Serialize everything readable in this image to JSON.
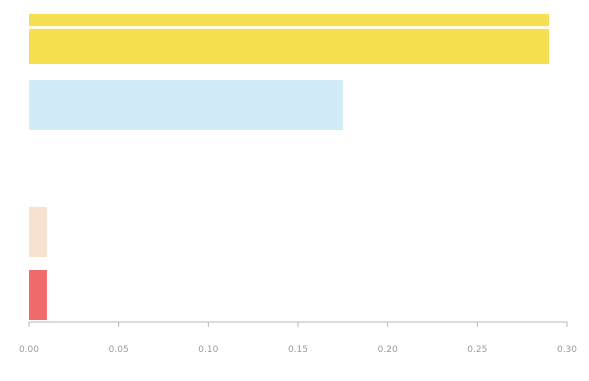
{
  "chart_data": {
    "type": "bar",
    "orientation": "horizontal",
    "categories": [
      "",
      "",
      "",
      "",
      ""
    ],
    "values": [
      0.29,
      0.175,
      0,
      0.01,
      0.01
    ],
    "colors": [
      "#f7df52",
      "#d2ebf8",
      "#ffffff",
      "#f7e2cf",
      "#ef6b6b"
    ],
    "xlim": [
      0,
      0.3
    ],
    "xticks": [
      0,
      0.05,
      0.1,
      0.15,
      0.2,
      0.25,
      0.3
    ],
    "xtick_labels": [
      "0.00",
      "0.05",
      "0.10",
      "0.15",
      "0.20",
      "0.25",
      "0.30"
    ],
    "grid": false,
    "title": "",
    "xlabel": "",
    "ylabel": ""
  }
}
